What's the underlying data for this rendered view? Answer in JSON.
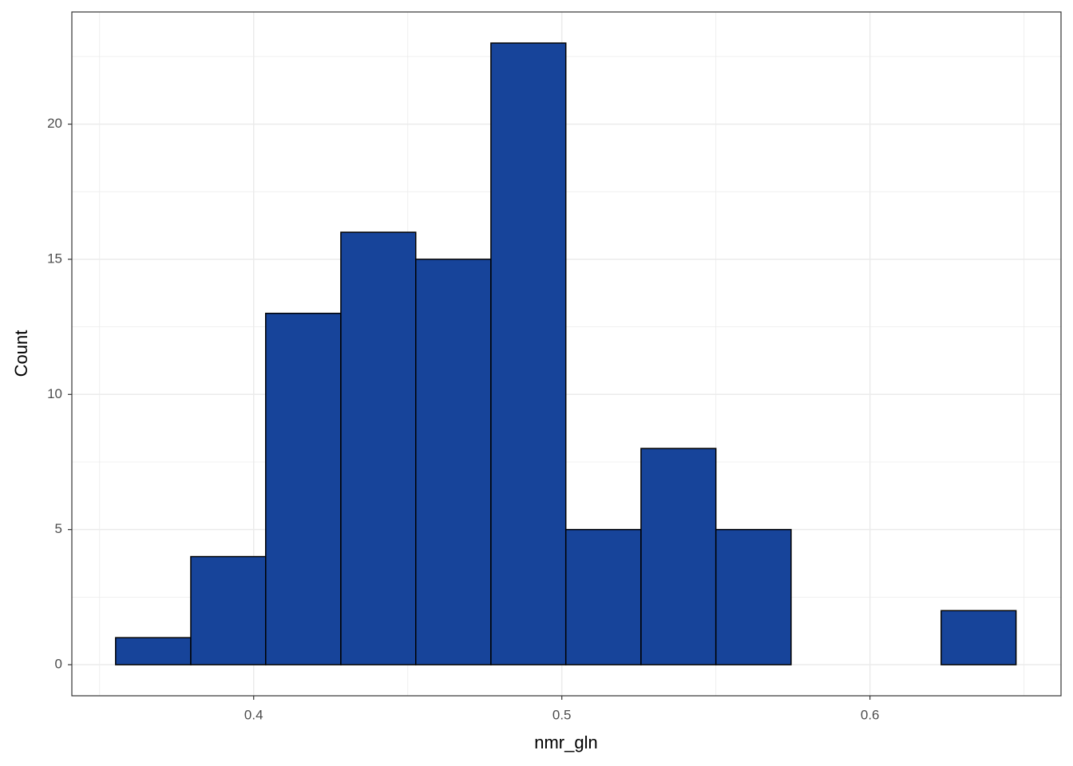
{
  "chart_data": {
    "type": "histogram",
    "x_label": "nmr_gln",
    "y_label": "Count",
    "bins": [
      0.3552,
      0.3796,
      0.4039,
      0.4283,
      0.4526,
      0.477,
      0.5013,
      0.5257,
      0.55,
      0.5744,
      0.5987,
      0.6231,
      0.6474
    ],
    "counts": [
      1,
      4,
      13,
      16,
      15,
      23,
      5,
      8,
      5,
      0,
      0,
      2
    ],
    "color": "#17449a",
    "edge_color": "#000000",
    "xlim": [
      0.341,
      0.662
    ],
    "ylim": [
      -1.15,
      24.15
    ],
    "xticks": [
      0.4,
      0.5,
      0.6
    ],
    "yticks": [
      0,
      5,
      10,
      15,
      20
    ],
    "x_minor_grid": [
      0.35,
      0.45,
      0.55,
      0.65
    ],
    "y_minor_grid": [
      2.5,
      7.5,
      12.5,
      17.5,
      22.5
    ],
    "grid": true
  }
}
